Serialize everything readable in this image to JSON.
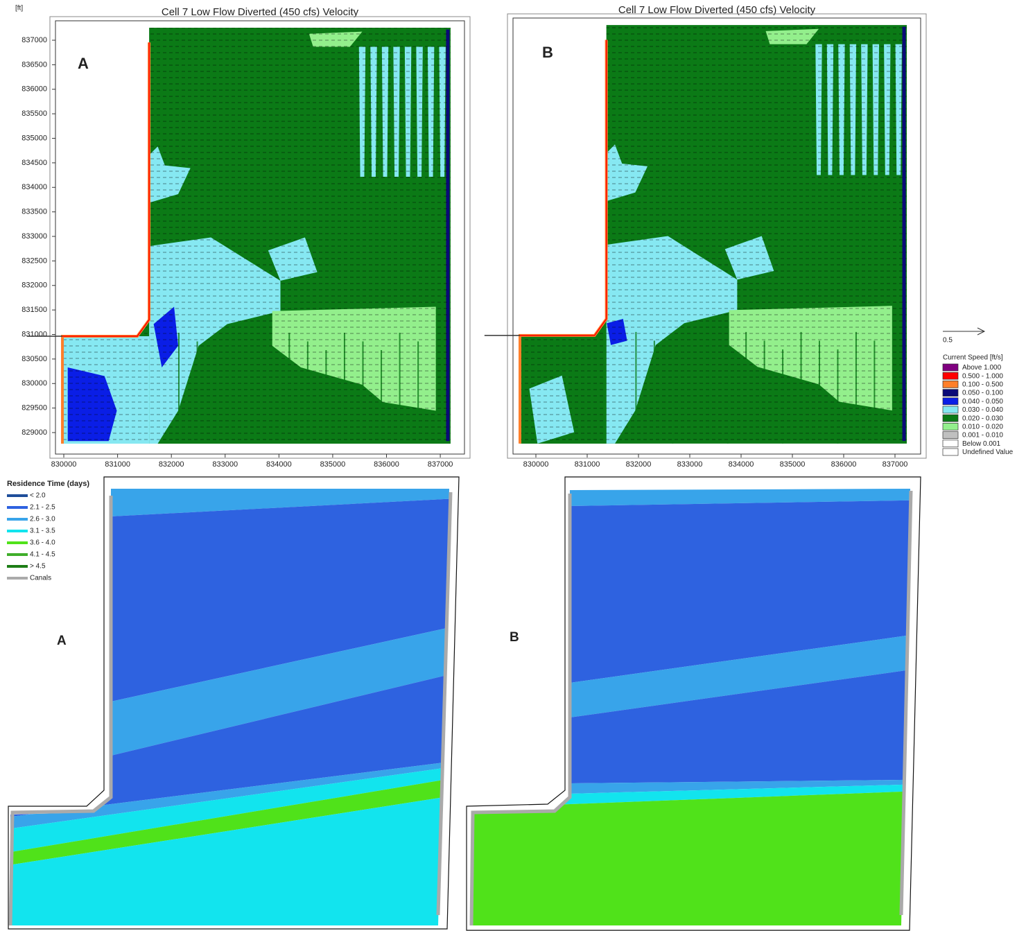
{
  "unit_label": "[ft]",
  "velocity_maps": [
    {
      "title": "Cell 7 Low Flow Diverted (450 cfs) Velocity",
      "panel_label": "A",
      "xlim": [
        829845,
        837450
      ],
      "ylim": [
        828562,
        837396
      ],
      "xticks": [
        830000,
        831000,
        832000,
        833000,
        834000,
        835000,
        836000,
        837000
      ],
      "yticks": [
        829000,
        829500,
        830000,
        830500,
        831000,
        831500,
        832000,
        832500,
        833000,
        833500,
        834000,
        834500,
        835000,
        835500,
        836000,
        836500,
        837000
      ]
    },
    {
      "title": "Cell 7 Low Flow Diverted (450 cfs) Velocity",
      "panel_label": "B",
      "xlim": [
        829554,
        837500
      ],
      "ylim": [
        828560,
        837450
      ],
      "xticks": [
        830000,
        831000,
        832000,
        833000,
        834000,
        835000,
        836000,
        837000
      ]
    }
  ],
  "speed_legend": {
    "title": "Current Speed [ft/s]",
    "vector_scale": 0.5,
    "items": [
      {
        "label": "Above  1.000",
        "color": "#800080"
      },
      {
        "label": "0.500 - 1.000",
        "color": "#ff0000"
      },
      {
        "label": "0.100 - 0.500",
        "color": "#ff7f2a"
      },
      {
        "label": "0.050 - 0.100",
        "color": "#0a0a78"
      },
      {
        "label": "0.040 - 0.050",
        "color": "#0a1ee6"
      },
      {
        "label": "0.030 - 0.040",
        "color": "#86e8f2"
      },
      {
        "label": "0.020 - 0.030",
        "color": "#0b7a16"
      },
      {
        "label": "0.010 - 0.020",
        "color": "#93ef8c"
      },
      {
        "label": "0.001 - 0.010",
        "color": "#c0c0c0"
      },
      {
        "label": "Below  0.001",
        "color": "#ffffff"
      },
      {
        "label": "Undefined Value",
        "color": "#ffffff"
      }
    ]
  },
  "residence_maps": {
    "legend_title": "Residence Time (days)",
    "panel_labels": [
      "A",
      "B"
    ],
    "items": [
      {
        "label": "< 2.0",
        "color": "#1f4e9a"
      },
      {
        "label": "2.1 - 2.5",
        "color": "#2e62e0"
      },
      {
        "label": "2.6 - 3.0",
        "color": "#38a4ea"
      },
      {
        "label": "3.1 - 3.5",
        "color": "#12e4ee"
      },
      {
        "label": "3.6 - 4.0",
        "color": "#50e21a"
      },
      {
        "label": "4.1 - 4.5",
        "color": "#3fae2a"
      },
      {
        "label": "> 4.5",
        "color": "#1d7d16"
      },
      {
        "label": "Canals",
        "color": "#aaaaaa"
      }
    ]
  }
}
